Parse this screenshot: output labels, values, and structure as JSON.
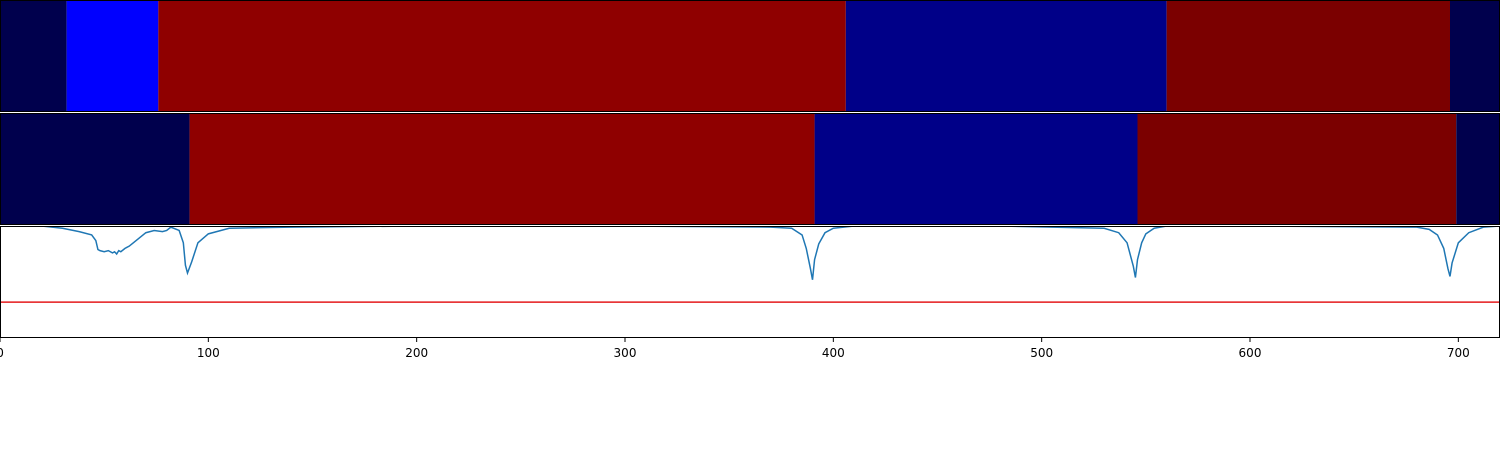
{
  "chart_data": [
    {
      "type": "heatmap",
      "title": "",
      "xlabel": "",
      "ylabel": "",
      "xlim": [
        0,
        720
      ],
      "segments": [
        {
          "start": 0,
          "end": 32,
          "color": "#00004d"
        },
        {
          "start": 32,
          "end": 76,
          "color": "#0000ff"
        },
        {
          "start": 76,
          "end": 406,
          "color": "#8f0000"
        },
        {
          "start": 406,
          "end": 560,
          "color": "#000088"
        },
        {
          "start": 560,
          "end": 696,
          "color": "#7b0000"
        },
        {
          "start": 696,
          "end": 720,
          "color": "#00004d"
        }
      ]
    },
    {
      "type": "heatmap",
      "title": "",
      "xlabel": "",
      "ylabel": "",
      "xlim": [
        0,
        720
      ],
      "segments": [
        {
          "start": 0,
          "end": 91,
          "color": "#00004d"
        },
        {
          "start": 91,
          "end": 391,
          "color": "#8f0000"
        },
        {
          "start": 391,
          "end": 546,
          "color": "#000088"
        },
        {
          "start": 546,
          "end": 699,
          "color": "#7b0000"
        },
        {
          "start": 699,
          "end": 720,
          "color": "#00004d"
        }
      ]
    },
    {
      "type": "line",
      "title": "",
      "xlabel": "",
      "ylabel": "",
      "xlim": [
        0,
        720
      ],
      "ylim": [
        -1.0,
        0.0
      ],
      "grid": false,
      "x_ticks": [
        0,
        100,
        200,
        300,
        400,
        500,
        600,
        700
      ],
      "x_tick_labels": [
        "0",
        "100",
        "200",
        "300",
        "400",
        "500",
        "600",
        "700"
      ],
      "threshold": {
        "value": -0.68,
        "color": "#e41a1c"
      },
      "series": [
        {
          "color": "#1f77b4",
          "x": [
            0,
            20,
            30,
            38,
            44,
            46,
            47,
            48,
            50,
            52,
            54,
            55,
            56,
            57,
            58,
            60,
            62,
            64,
            66,
            70,
            74,
            78,
            80,
            82,
            86,
            88,
            89,
            90,
            92,
            95,
            100,
            110,
            140,
            200,
            300,
            370,
            380,
            385,
            387,
            389,
            390,
            391,
            393,
            396,
            400,
            410,
            480,
            530,
            537,
            541,
            544,
            545,
            546,
            548,
            550,
            554,
            560,
            600,
            680,
            686,
            690,
            693,
            695,
            696,
            697,
            700,
            705,
            712,
            720
          ],
          "y": [
            0.0,
            0.0,
            -0.02,
            -0.05,
            -0.08,
            -0.13,
            -0.21,
            -0.22,
            -0.23,
            -0.22,
            -0.24,
            -0.23,
            -0.25,
            -0.22,
            -0.23,
            -0.2,
            -0.18,
            -0.15,
            -0.12,
            -0.06,
            -0.04,
            -0.05,
            -0.04,
            -0.01,
            -0.04,
            -0.15,
            -0.35,
            -0.42,
            -0.32,
            -0.15,
            -0.07,
            -0.02,
            -0.01,
            0.0,
            0.0,
            -0.01,
            -0.02,
            -0.08,
            -0.2,
            -0.38,
            -0.48,
            -0.3,
            -0.16,
            -0.06,
            -0.02,
            0.0,
            0.0,
            -0.02,
            -0.06,
            -0.15,
            -0.36,
            -0.46,
            -0.3,
            -0.15,
            -0.07,
            -0.02,
            0.0,
            0.0,
            -0.01,
            -0.03,
            -0.08,
            -0.2,
            -0.38,
            -0.45,
            -0.33,
            -0.15,
            -0.06,
            -0.01,
            0.0
          ]
        }
      ]
    }
  ]
}
